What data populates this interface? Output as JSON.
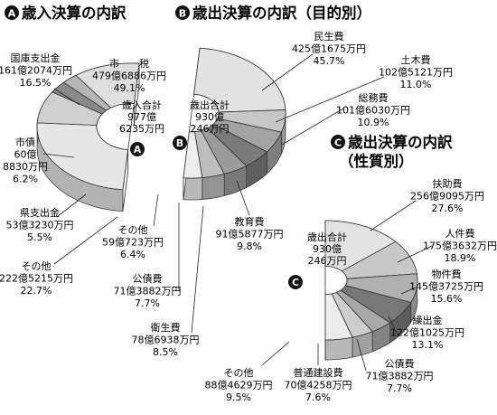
{
  "chart_data": [
    {
      "type": "pie",
      "marker": "A",
      "title": "歳入決算の内訳",
      "center_label": [
        "歳入合計",
        "977億",
        "6235万円"
      ],
      "slices": [
        {
          "name": "市　　税",
          "amount": "479億6886万円",
          "percent": "49.1%",
          "value": 49.1
        },
        {
          "name": "国庫支出金",
          "amount": "161億2074万円",
          "percent": "16.5%",
          "value": 16.5
        },
        {
          "name": "市債",
          "amount": "60億\n8830万円",
          "percent": "6.2%",
          "value": 6.2
        },
        {
          "name": "県支出金",
          "amount": "53億3230万円",
          "percent": "5.5%",
          "value": 5.5
        },
        {
          "name": "その他",
          "amount": "222億5215万円",
          "percent": "22.7%",
          "value": 22.7
        }
      ]
    },
    {
      "type": "pie",
      "marker": "B",
      "title": "歳出決算の内訳（目的別）",
      "center_label": [
        "歳出合計",
        "930億",
        "246万円"
      ],
      "slices": [
        {
          "name": "民生費",
          "amount": "425億1675万円",
          "percent": "45.7%",
          "value": 45.7
        },
        {
          "name": "土木費",
          "amount": "102億5121万円",
          "percent": "11.0%",
          "value": 11.0
        },
        {
          "name": "総務費",
          "amount": "101億6030万円",
          "percent": "10.9%",
          "value": 10.9
        },
        {
          "name": "教育費",
          "amount": "91億5877万円",
          "percent": "9.8%",
          "value": 9.8
        },
        {
          "name": "衛生費",
          "amount": "78億6938万円",
          "percent": "8.5%",
          "value": 8.5
        },
        {
          "name": "公債費",
          "amount": "71億3882万円",
          "percent": "7.7%",
          "value": 7.7
        },
        {
          "name": "その他",
          "amount": "59億723万円",
          "percent": "6.4%",
          "value": 6.4
        }
      ]
    },
    {
      "type": "pie",
      "marker": "C",
      "title": "歳出決算の内訳\n（性質別）",
      "center_label": [
        "歳出合計",
        "930億",
        "246万円"
      ],
      "slices": [
        {
          "name": "扶助費",
          "amount": "256億9095万円",
          "percent": "27.6%",
          "value": 27.6
        },
        {
          "name": "人件費",
          "amount": "175億3632万円",
          "percent": "18.9%",
          "value": 18.9
        },
        {
          "name": "物件費",
          "amount": "145億3725万円",
          "percent": "15.6%",
          "value": 15.6
        },
        {
          "name": "繰出金",
          "amount": "122億1025万円",
          "percent": "13.1%",
          "value": 13.1
        },
        {
          "name": "公債費",
          "amount": "71億3882万円",
          "percent": "7.7%",
          "value": 7.7
        },
        {
          "name": "普通建設費",
          "amount": "70億4258万円",
          "percent": "7.6%",
          "value": 7.6
        },
        {
          "name": "その他",
          "amount": "88億4629万円",
          "percent": "9.5%",
          "value": 9.5
        }
      ]
    }
  ],
  "colors": {
    "A": [
      "#e6e6e6",
      "#cfcfcf",
      "#8a8a8a",
      "#b5b5b5",
      "#dedede"
    ],
    "B": [
      "#e2e2e2",
      "#c6c6c6",
      "#a3a3a3",
      "#7a7a7a",
      "#9b9b9b",
      "#bdbdbd",
      "#ededed"
    ],
    "C": [
      "#e3e3e3",
      "#c8c8c8",
      "#b0b0b0",
      "#787878",
      "#a8a8a8",
      "#cdcdcd",
      "#ececec"
    ]
  }
}
